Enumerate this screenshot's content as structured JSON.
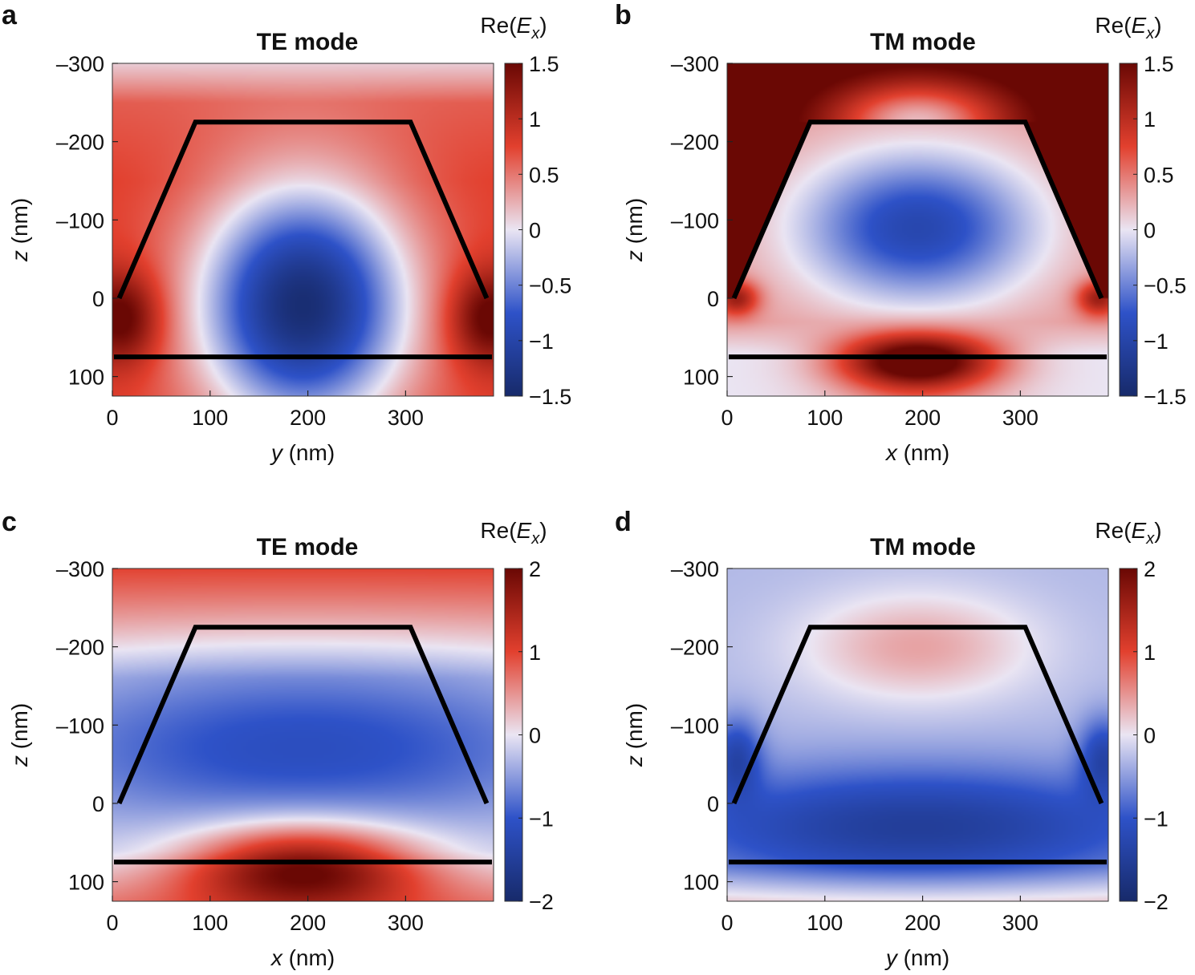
{
  "figure": {
    "colormap": [
      "#172a6a",
      "#2e52c8",
      "#eae5f3",
      "#e2402e",
      "#6a0804"
    ],
    "boundary_color": "#000000"
  },
  "chart_data": [
    {
      "type": "heatmap",
      "panel": "a",
      "title": "TE mode",
      "colorbar_label": "Re(E_x)",
      "colorbar_ticks": [
        1.5,
        1,
        0.5,
        0,
        -0.5,
        -1,
        -1.5
      ],
      "clim": [
        -1.5,
        1.5
      ],
      "xlabel": "y (nm)",
      "ylabel": "z (nm)",
      "xlim": [
        0,
        390
      ],
      "ylim": [
        -300,
        125
      ],
      "xticks": [
        0,
        100,
        200,
        300
      ],
      "yticks": [
        -300,
        -200,
        -100,
        0,
        100
      ],
      "field_model": "te_ab",
      "structure": {
        "trapezoid_top_z": -225,
        "trapezoid_bottom_z": 0,
        "top_edge_x": [
          85,
          305
        ],
        "bottom_edge_x": [
          7,
          383
        ],
        "substrate_line_z": 75
      }
    },
    {
      "type": "heatmap",
      "panel": "b",
      "title": "TM mode",
      "colorbar_label": "Re(E_x)",
      "colorbar_ticks": [
        1.5,
        1,
        0.5,
        0,
        -0.5,
        -1,
        -1.5
      ],
      "clim": [
        -1.5,
        1.5
      ],
      "xlabel": "x (nm)",
      "ylabel": "z (nm)",
      "xlim": [
        0,
        390
      ],
      "ylim": [
        -300,
        125
      ],
      "xticks": [
        0,
        100,
        200,
        300
      ],
      "yticks": [
        -300,
        -200,
        -100,
        0,
        100
      ],
      "field_model": "tm_b",
      "structure": {
        "trapezoid_top_z": -225,
        "trapezoid_bottom_z": 0,
        "top_edge_x": [
          85,
          305
        ],
        "bottom_edge_x": [
          7,
          383
        ],
        "substrate_line_z": 75
      }
    },
    {
      "type": "heatmap",
      "panel": "c",
      "title": "TE mode",
      "colorbar_label": "Re(E_x)",
      "colorbar_ticks": [
        2,
        1,
        0,
        -1,
        -2
      ],
      "clim": [
        -2,
        2
      ],
      "xlabel": "x (nm)",
      "ylabel": "z (nm)",
      "xlim": [
        0,
        390
      ],
      "ylim": [
        -300,
        125
      ],
      "xticks": [
        0,
        100,
        200,
        300
      ],
      "yticks": [
        -300,
        -200,
        -100,
        0,
        100
      ],
      "field_model": "te_c",
      "structure": {
        "trapezoid_top_z": -225,
        "trapezoid_bottom_z": 0,
        "top_edge_x": [
          85,
          305
        ],
        "bottom_edge_x": [
          7,
          383
        ],
        "substrate_line_z": 75
      }
    },
    {
      "type": "heatmap",
      "panel": "d",
      "title": "TM mode",
      "colorbar_label": "Re(E_x)",
      "colorbar_ticks": [
        2,
        1,
        0,
        -1,
        -2
      ],
      "clim": [
        -2,
        2
      ],
      "xlabel": "y (nm)",
      "ylabel": "z (nm)",
      "xlim": [
        0,
        390
      ],
      "ylim": [
        -300,
        125
      ],
      "xticks": [
        0,
        100,
        200,
        300
      ],
      "yticks": [
        -300,
        -200,
        -100,
        0,
        100
      ],
      "field_model": "tm_d",
      "structure": {
        "trapezoid_top_z": -225,
        "trapezoid_bottom_z": 0,
        "top_edge_x": [
          85,
          305
        ],
        "bottom_edge_x": [
          7,
          383
        ],
        "substrate_line_z": 75
      }
    }
  ]
}
